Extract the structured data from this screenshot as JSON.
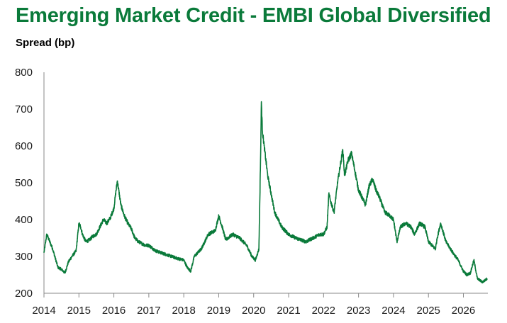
{
  "chart_data": {
    "type": "line",
    "title": "Emerging Market Credit - EMBI Global Diversified",
    "ylabel": "Spread (bp)",
    "xlabel": "",
    "xlim": [
      2014.0,
      2026.7
    ],
    "ylim": [
      200,
      800
    ],
    "yticks": [
      200,
      300,
      400,
      500,
      600,
      700,
      800
    ],
    "xticks": [
      "2014",
      "2015",
      "2016",
      "2017",
      "2018",
      "2019",
      "2020",
      "2021",
      "2022",
      "2023",
      "2024",
      "2025",
      "2026"
    ],
    "grid": false,
    "legend": "none",
    "line_color": "#0a7a3a",
    "series": [
      {
        "x": [
          2014.0,
          2014.08,
          2014.25,
          2014.4,
          2014.5,
          2014.6,
          2014.7,
          2014.8,
          2014.92,
          2015.0,
          2015.05,
          2015.1,
          2015.2,
          2015.3,
          2015.4,
          2015.5,
          2015.6,
          2015.7,
          2015.8,
          2015.9,
          2016.0,
          2016.05,
          2016.1,
          2016.2,
          2016.3,
          2016.4,
          2016.5,
          2016.6,
          2016.7,
          2016.8,
          2016.9,
          2017.0,
          2017.2,
          2017.5,
          2017.8,
          2018.0,
          2018.1,
          2018.2,
          2018.3,
          2018.5,
          2018.7,
          2018.9,
          2019.0,
          2019.1,
          2019.2,
          2019.4,
          2019.6,
          2019.8,
          2019.95,
          2020.05,
          2020.15,
          2020.2,
          2020.22,
          2020.25,
          2020.3,
          2020.4,
          2020.5,
          2020.6,
          2020.8,
          2021.0,
          2021.2,
          2021.5,
          2021.8,
          2021.9,
          2022.0,
          2022.1,
          2022.15,
          2022.2,
          2022.3,
          2022.4,
          2022.5,
          2022.55,
          2022.6,
          2022.7,
          2022.8,
          2022.9,
          2023.0,
          2023.1,
          2023.2,
          2023.3,
          2023.4,
          2023.5,
          2023.6,
          2023.75,
          2023.9,
          2024.0,
          2024.1,
          2024.2,
          2024.35,
          2024.5,
          2024.6,
          2024.75,
          2024.9,
          2025.0,
          2025.1,
          2025.2,
          2025.25,
          2025.35,
          2025.5,
          2025.7,
          2025.85,
          2026.0,
          2026.1,
          2026.2,
          2026.3,
          2026.4,
          2026.55,
          2026.68
        ],
        "values": [
          310,
          360,
          320,
          270,
          265,
          255,
          285,
          300,
          315,
          390,
          380,
          360,
          340,
          345,
          355,
          360,
          380,
          400,
          390,
          405,
          430,
          470,
          505,
          440,
          410,
          390,
          375,
          350,
          340,
          335,
          330,
          330,
          315,
          305,
          295,
          290,
          270,
          260,
          300,
          320,
          360,
          370,
          410,
          380,
          345,
          360,
          350,
          330,
          300,
          290,
          320,
          580,
          720,
          640,
          600,
          520,
          470,
          420,
          380,
          360,
          350,
          340,
          355,
          360,
          360,
          380,
          470,
          450,
          420,
          500,
          560,
          590,
          520,
          560,
          580,
          530,
          480,
          460,
          440,
          490,
          510,
          480,
          460,
          420,
          410,
          400,
          340,
          380,
          390,
          380,
          360,
          390,
          380,
          340,
          330,
          320,
          350,
          390,
          340,
          310,
          290,
          260,
          250,
          255,
          290,
          240,
          230,
          240
        ]
      }
    ]
  }
}
